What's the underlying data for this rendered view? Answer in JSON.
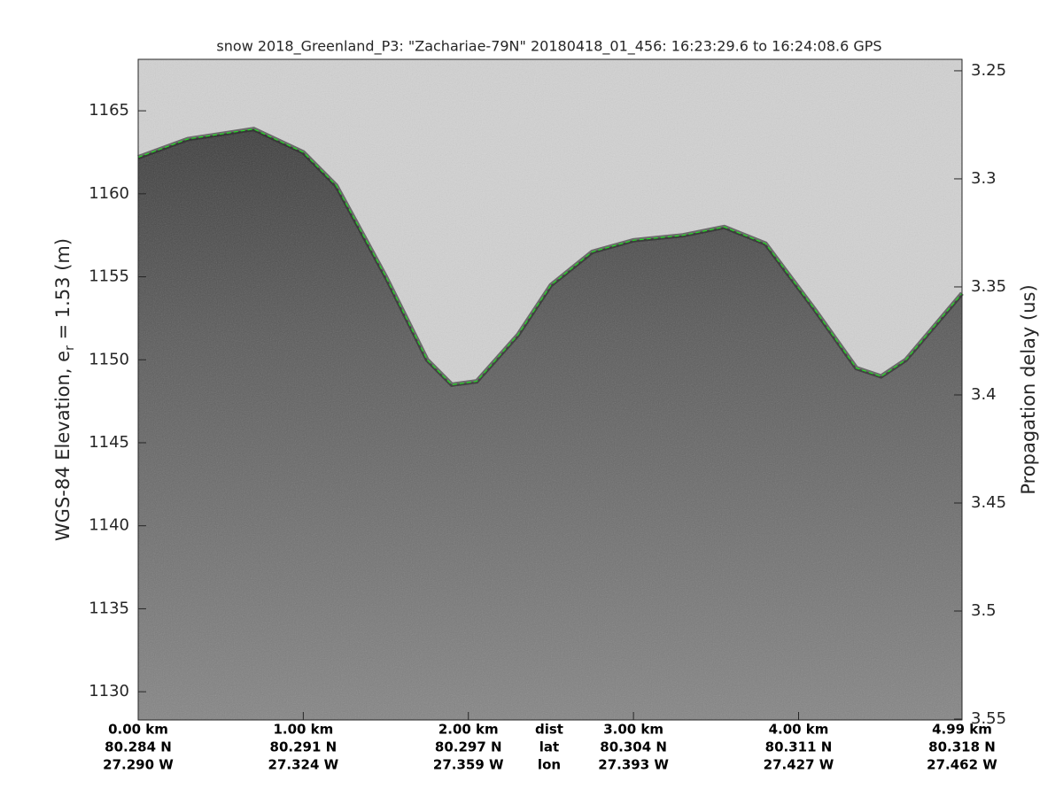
{
  "chart_data": {
    "type": "line",
    "title": "snow 2018_Greenland_P3: \"Zachariae-79N\"  20180418_01_456: 16:23:29.6 to 16:24:08.6 GPS",
    "ylabel": [
      "WGS-84 Elevation, e",
      "r",
      " = 1.53 (m)"
    ],
    "y2label": "Propagation delay (us)",
    "xlim": [
      0,
      4.99
    ],
    "xticks": [
      {
        "value": 0,
        "label": "0.00 km"
      },
      {
        "value": 1,
        "label": "1.00 km"
      },
      {
        "value": 2,
        "label": "2.00 km"
      },
      {
        "value": 3,
        "label": "3.00 km"
      },
      {
        "value": 4,
        "label": "4.00 km"
      },
      {
        "value": 4.99,
        "label": "4.99 km"
      }
    ],
    "xtick_lat": [
      "80.284 N",
      "80.291 N",
      "80.297 N",
      "80.304 N",
      "80.311 N",
      "80.318 N"
    ],
    "xtick_lon": [
      "27.290 W",
      "27.324 W",
      "27.359 W",
      "27.393 W",
      "27.427 W",
      "27.462 W"
    ],
    "row_labels": [
      "dist",
      "lat",
      "lon"
    ],
    "ylim": [
      1128.3,
      1168.1
    ],
    "yticks": [
      1130,
      1135,
      1140,
      1145,
      1150,
      1155,
      1160,
      1165
    ],
    "y2lim": [
      3.2447,
      3.5504
    ],
    "y2ticks": [
      3.25,
      3.3,
      3.35,
      3.4,
      3.45,
      3.5,
      3.55
    ],
    "series": [
      {
        "name": "surface",
        "color": "#22dd22",
        "x": [
          0,
          0.3,
          0.7,
          1.0,
          1.2,
          1.5,
          1.75,
          1.9,
          2.05,
          2.3,
          2.5,
          2.75,
          3.0,
          3.3,
          3.55,
          3.8,
          4.1,
          4.35,
          4.5,
          4.65,
          4.99
        ],
        "values": [
          1162.2,
          1163.3,
          1163.9,
          1162.5,
          1160.5,
          1155,
          1150,
          1148.5,
          1148.7,
          1151.5,
          1154.5,
          1156.5,
          1157.2,
          1157.5,
          1158,
          1157,
          1153,
          1149.5,
          1149.0,
          1150,
          1154
        ]
      }
    ]
  }
}
